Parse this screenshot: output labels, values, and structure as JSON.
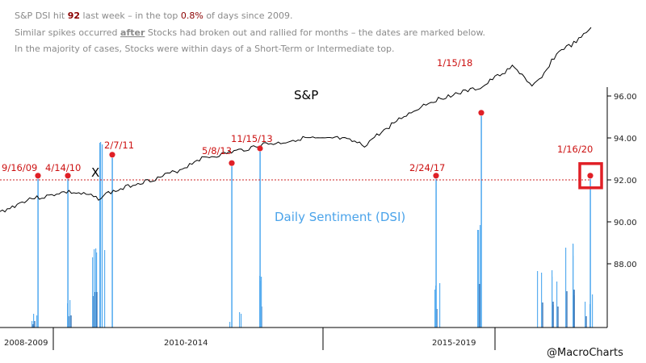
{
  "annotation": {
    "line1": {
      "a": "S&P DSI hit ",
      "b": "92",
      "c": " last week – in the top ",
      "d": "0.8%",
      "e": " of days since 2009."
    },
    "line2": {
      "a": "Similar spikes occurred ",
      "b": "after",
      "c": " Stocks had broken out and rallied for months – the dates are marked below."
    },
    "line3": "In the majority of cases, Stocks were within days of a Short-Term or Intermediate top."
  },
  "credit": "@MacroCharts",
  "colors": {
    "sp_line": "#000000",
    "dsi_light": "#5aaef0",
    "dsi_dark": "#1f5fa8",
    "marker": "#e01f26",
    "threshold": "#cc2222",
    "note_text": "#8a8a8a",
    "note_highlight": "#8b0000"
  },
  "chart_data": {
    "type": "line",
    "title": "",
    "series": [
      {
        "name": "S&P",
        "values": [
          4.4,
          4.9,
          5.5,
          6.1,
          6.2,
          6.4,
          6.8,
          6.9,
          6.7,
          6.5,
          6.1,
          6.8,
          7.1,
          7.6,
          8.0,
          8.3,
          8.6,
          9.1,
          9.5,
          10.1,
          10.9,
          11.2,
          11.4,
          11.7,
          12.0,
          12.2,
          12.6,
          12.9,
          12.9,
          13.1,
          13.4,
          13.6,
          13.5,
          13.4,
          13.6,
          13.4,
          13.1,
          12.6,
          13.7,
          14.5,
          15.5,
          16.3,
          16.9,
          17.7,
          18.2,
          18.6,
          19.0,
          19.3,
          19.6,
          19.9,
          20.9,
          21.6,
          22.4,
          21.5,
          19.9,
          21.0,
          23.2,
          24.6,
          25.1,
          26.0,
          27.3
        ],
        "note": "S&P 500 trace, relative level 0–30 (no price axis shown)"
      },
      {
        "name": "Daily Sentiment (DSI)",
        "spikes": [
          {
            "date": "9/16/09",
            "value": 92.2,
            "label": "9/16/09"
          },
          {
            "date": "4/14/10",
            "value": 92.2,
            "label": "4/14/10"
          },
          {
            "date": "2/7/11",
            "value": 93.2,
            "label": "2/7/11"
          },
          {
            "date": "5/8/13",
            "value": 92.8,
            "label": "5/8/13"
          },
          {
            "date": "11/15/13",
            "value": 93.5,
            "label": "11/15/13"
          },
          {
            "date": "2/24/17",
            "value": 92.2,
            "label": "2/24/17"
          },
          {
            "date": "1/15/18",
            "value": 95.2,
            "label": "1/15/18"
          },
          {
            "date": "1/16/20",
            "value": 92.2,
            "label": "1/16/20"
          }
        ],
        "threshold": 92
      }
    ],
    "labels": {
      "sp": "S&P",
      "dsi": "Daily Sentiment (DSI)"
    },
    "y_axis": {
      "ticks": [
        "96.00",
        "94.00",
        "92.00",
        "90.00",
        "88.00"
      ],
      "values": [
        96,
        94,
        92,
        90,
        88
      ]
    },
    "x_axis": {
      "period_labels": [
        "2008-2009",
        "2010-2014",
        "2015-2019"
      ]
    },
    "cross_marker": "X"
  }
}
